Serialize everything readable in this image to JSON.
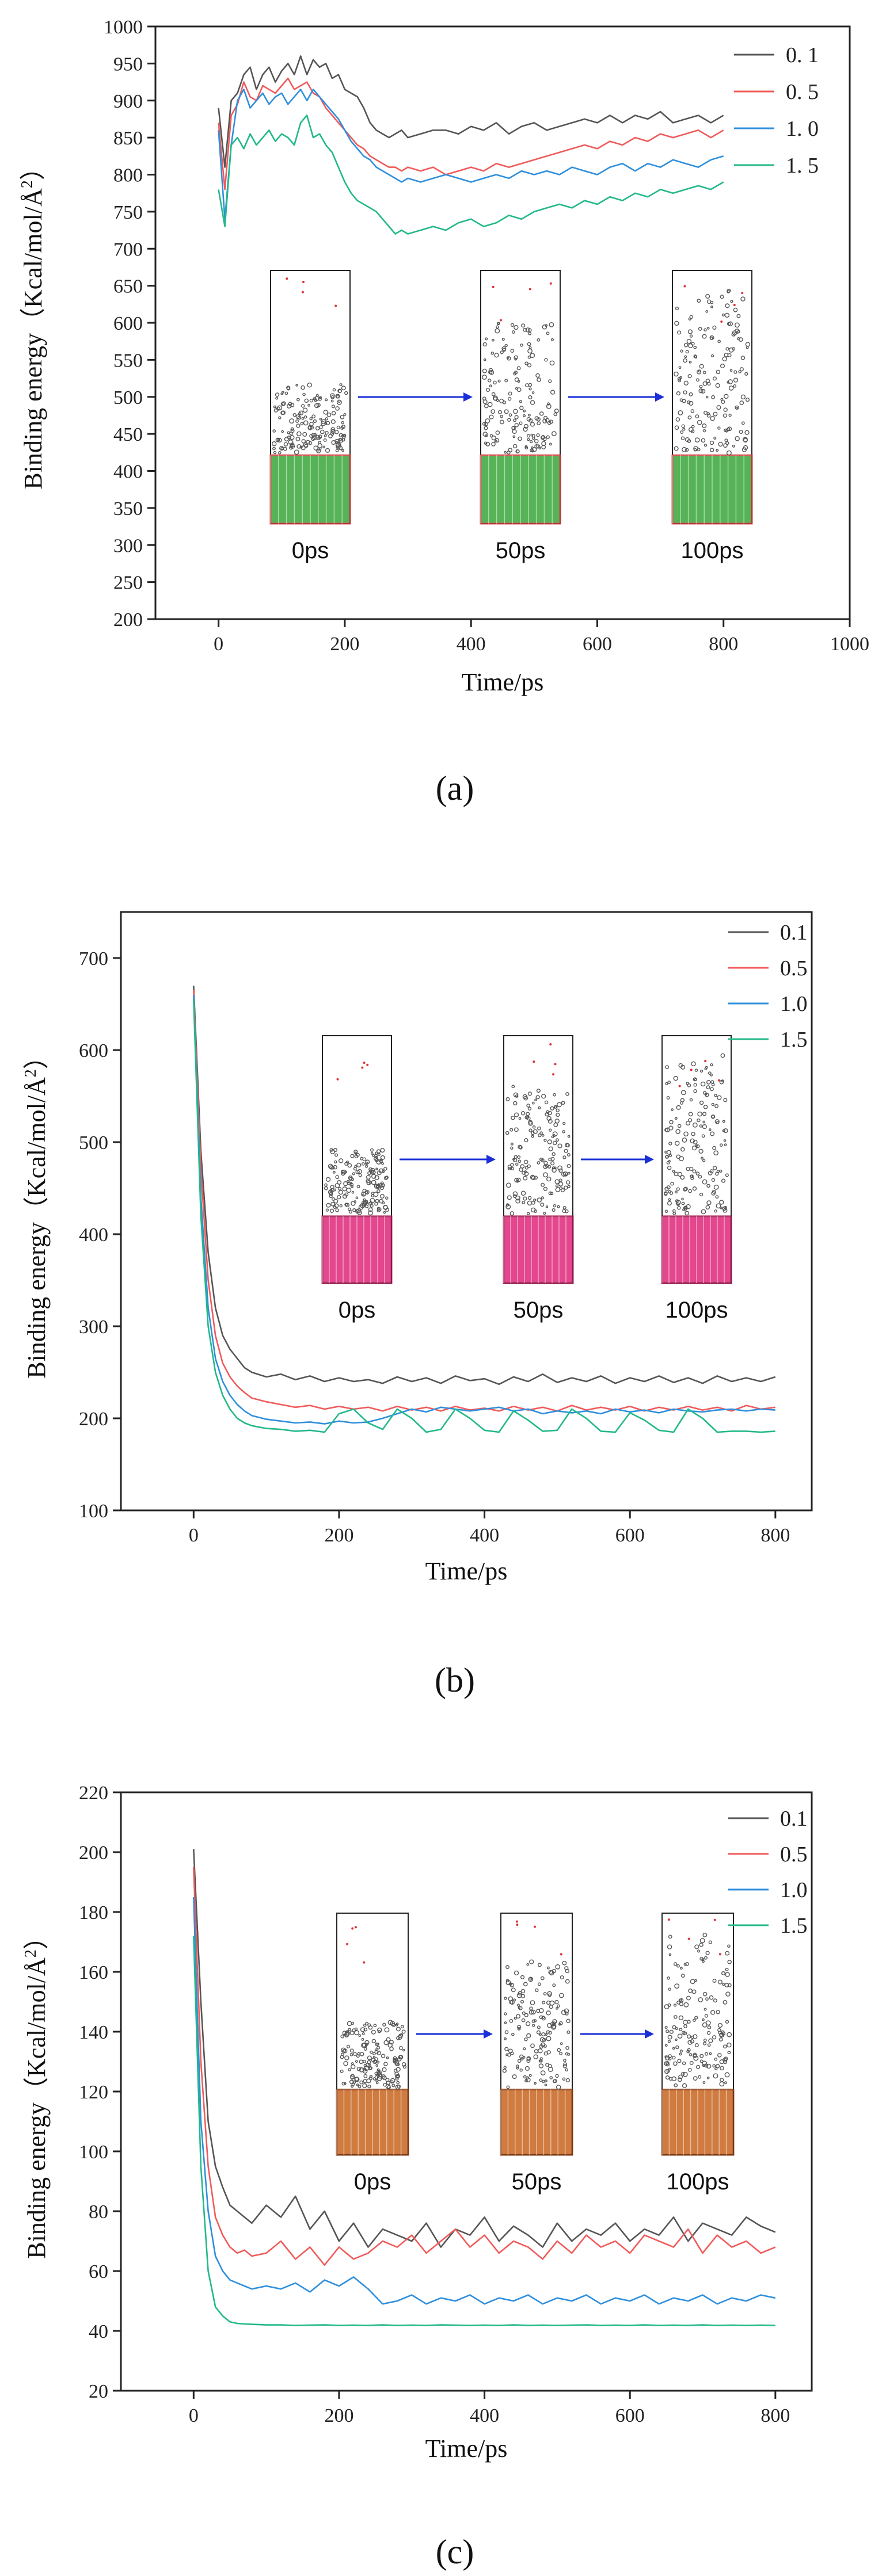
{
  "colors": {
    "series": [
      "#555555",
      "#f05a5a",
      "#2f8fdc",
      "#22b88a"
    ],
    "arrow": "#1a2fd8",
    "slab": [
      "#3aa63a",
      "#e0287a",
      "#c8641e"
    ],
    "slab_line": [
      "#d23a3a",
      "#a01850",
      "#8a3a10"
    ]
  },
  "chart_data": [
    {
      "type": "line",
      "caption": "(a)",
      "xlabel": "Time/ps",
      "ylabel_main": "Binding energy（Kcal/mol/Å",
      "ylabel_sup": "2",
      "ylabel_close": "）",
      "xlim": [
        -100,
        1000
      ],
      "ylim": [
        200,
        1000
      ],
      "xticks": [
        0,
        200,
        400,
        600,
        800,
        1000
      ],
      "yticks": [
        200,
        250,
        300,
        350,
        400,
        450,
        500,
        550,
        600,
        650,
        700,
        750,
        800,
        850,
        900,
        950,
        1000
      ],
      "x": [
        0,
        10,
        20,
        30,
        40,
        50,
        60,
        70,
        80,
        90,
        100,
        110,
        120,
        130,
        140,
        150,
        160,
        170,
        180,
        190,
        200,
        210,
        220,
        230,
        240,
        250,
        260,
        270,
        280,
        290,
        300,
        320,
        340,
        360,
        380,
        400,
        420,
        440,
        460,
        480,
        500,
        520,
        540,
        560,
        580,
        600,
        620,
        640,
        660,
        680,
        700,
        720,
        740,
        760,
        780,
        800
      ],
      "legend": [
        "0. 1",
        "0. 5",
        "1. 0",
        "1. 5"
      ],
      "series": [
        {
          "name": "0. 1",
          "values": [
            890,
            810,
            900,
            910,
            935,
            945,
            915,
            935,
            945,
            925,
            940,
            950,
            935,
            960,
            935,
            955,
            945,
            950,
            930,
            935,
            915,
            910,
            905,
            890,
            870,
            860,
            855,
            850,
            855,
            860,
            850,
            855,
            860,
            860,
            855,
            865,
            860,
            870,
            855,
            865,
            870,
            860,
            865,
            870,
            875,
            870,
            880,
            870,
            880,
            875,
            885,
            870,
            875,
            880,
            870,
            880
          ]
        },
        {
          "name": "0. 5",
          "values": [
            870,
            780,
            880,
            895,
            925,
            905,
            900,
            920,
            915,
            910,
            920,
            930,
            915,
            920,
            925,
            910,
            905,
            890,
            880,
            870,
            860,
            850,
            840,
            835,
            825,
            820,
            815,
            810,
            810,
            805,
            810,
            805,
            810,
            800,
            805,
            810,
            805,
            815,
            810,
            815,
            820,
            825,
            830,
            835,
            840,
            835,
            845,
            840,
            850,
            845,
            855,
            850,
            855,
            860,
            850,
            860
          ]
        },
        {
          "name": "1. 0",
          "values": [
            860,
            740,
            840,
            900,
            915,
            890,
            900,
            910,
            895,
            905,
            910,
            895,
            905,
            915,
            900,
            915,
            905,
            895,
            885,
            875,
            860,
            845,
            835,
            825,
            820,
            810,
            805,
            800,
            795,
            790,
            795,
            790,
            795,
            800,
            795,
            790,
            795,
            800,
            795,
            805,
            800,
            805,
            800,
            810,
            805,
            800,
            810,
            815,
            805,
            815,
            810,
            820,
            815,
            810,
            820,
            825
          ]
        },
        {
          "name": "1. 5",
          "values": [
            780,
            730,
            840,
            850,
            835,
            855,
            840,
            850,
            860,
            845,
            855,
            850,
            840,
            870,
            880,
            850,
            855,
            840,
            830,
            810,
            790,
            775,
            765,
            760,
            755,
            750,
            740,
            730,
            720,
            725,
            720,
            725,
            730,
            725,
            735,
            740,
            730,
            735,
            745,
            740,
            750,
            755,
            760,
            755,
            765,
            760,
            770,
            765,
            775,
            770,
            780,
            775,
            780,
            785,
            780,
            790
          ]
        }
      ],
      "snapshots": [
        "0ps",
        "50ps",
        "100ps"
      ]
    },
    {
      "type": "line",
      "caption": "(b)",
      "xlabel": "Time/ps",
      "ylabel_main": "Binding energy（Kcal/mol/Å",
      "ylabel_sup": "2",
      "ylabel_close": "）",
      "xlim": [
        -100,
        850
      ],
      "ylim": [
        100,
        750
      ],
      "xticks": [
        0,
        200,
        400,
        600,
        800
      ],
      "yticks": [
        100,
        200,
        300,
        400,
        500,
        600,
        700
      ],
      "x": [
        0,
        10,
        20,
        30,
        40,
        50,
        60,
        70,
        80,
        100,
        120,
        140,
        160,
        180,
        200,
        220,
        240,
        260,
        280,
        300,
        320,
        340,
        360,
        380,
        400,
        420,
        440,
        460,
        480,
        500,
        520,
        540,
        560,
        580,
        600,
        620,
        640,
        660,
        680,
        700,
        720,
        740,
        760,
        780,
        800
      ],
      "legend": [
        "0.1",
        "0.5",
        "1.0",
        "1.5"
      ],
      "series": [
        {
          "name": "0.1",
          "values": [
            670,
            490,
            380,
            320,
            290,
            275,
            265,
            255,
            250,
            245,
            248,
            242,
            246,
            240,
            244,
            240,
            242,
            238,
            245,
            240,
            244,
            238,
            246,
            241,
            243,
            237,
            245,
            240,
            248,
            239,
            244,
            240,
            246,
            238,
            244,
            240,
            246,
            239,
            244,
            238,
            246,
            240,
            244,
            240,
            245
          ]
        },
        {
          "name": "0.5",
          "values": [
            665,
            470,
            350,
            290,
            260,
            245,
            235,
            228,
            222,
            218,
            215,
            212,
            214,
            210,
            213,
            210,
            212,
            208,
            213,
            209,
            212,
            208,
            213,
            209,
            211,
            208,
            213,
            209,
            212,
            208,
            214,
            209,
            212,
            209,
            213,
            208,
            212,
            209,
            213,
            209,
            212,
            208,
            214,
            210,
            212
          ]
        },
        {
          "name": "1.0",
          "values": [
            660,
            440,
            320,
            265,
            240,
            225,
            215,
            208,
            203,
            199,
            197,
            195,
            196,
            194,
            197,
            195,
            196,
            200,
            205,
            210,
            207,
            212,
            210,
            208,
            210,
            212,
            208,
            210,
            205,
            208,
            206,
            208,
            205,
            210,
            207,
            209,
            206,
            210,
            208,
            207,
            209,
            210,
            208,
            210,
            209
          ]
        },
        {
          "name": "1.5",
          "values": [
            655,
            420,
            300,
            250,
            225,
            210,
            200,
            195,
            192,
            189,
            188,
            186,
            187,
            185,
            205,
            210,
            195,
            188,
            210,
            200,
            185,
            188,
            210,
            200,
            187,
            185,
            208,
            198,
            186,
            187,
            210,
            200,
            186,
            185,
            206,
            198,
            187,
            185,
            210,
            200,
            185,
            186,
            186,
            185,
            186
          ]
        }
      ],
      "snapshots": [
        "0ps",
        "50ps",
        "100ps"
      ]
    },
    {
      "type": "line",
      "caption": "(c)",
      "xlabel": "Time/ps",
      "ylabel_main": "Binding energy（Kcal/mol/Å",
      "ylabel_sup": "2",
      "ylabel_close": "）",
      "xlim": [
        -100,
        850
      ],
      "ylim": [
        20,
        220
      ],
      "xticks": [
        0,
        200,
        400,
        600,
        800
      ],
      "yticks": [
        20,
        40,
        60,
        80,
        100,
        120,
        140,
        160,
        180,
        200,
        220
      ],
      "x": [
        0,
        10,
        20,
        30,
        40,
        50,
        60,
        70,
        80,
        100,
        120,
        140,
        160,
        180,
        200,
        220,
        240,
        260,
        280,
        300,
        320,
        340,
        360,
        380,
        400,
        420,
        440,
        460,
        480,
        500,
        520,
        540,
        560,
        580,
        600,
        620,
        640,
        660,
        680,
        700,
        720,
        740,
        760,
        780,
        800
      ],
      "legend": [
        "0.1",
        "0.5",
        "1.0",
        "1.5"
      ],
      "series": [
        {
          "name": "0.1",
          "values": [
            201,
            150,
            110,
            95,
            88,
            82,
            80,
            78,
            76,
            82,
            78,
            85,
            74,
            80,
            70,
            76,
            68,
            74,
            72,
            70,
            76,
            68,
            74,
            72,
            78,
            70,
            75,
            72,
            68,
            76,
            70,
            74,
            72,
            76,
            70,
            74,
            72,
            78,
            70,
            76,
            74,
            72,
            78,
            75,
            73
          ]
        },
        {
          "name": "0.5",
          "values": [
            195,
            130,
            95,
            78,
            72,
            68,
            66,
            67,
            65,
            66,
            70,
            64,
            68,
            62,
            68,
            64,
            66,
            70,
            68,
            72,
            66,
            70,
            74,
            68,
            72,
            66,
            70,
            68,
            64,
            70,
            66,
            72,
            68,
            70,
            66,
            72,
            70,
            68,
            74,
            66,
            72,
            68,
            70,
            66,
            68
          ]
        },
        {
          "name": "1.0",
          "values": [
            185,
            110,
            80,
            65,
            60,
            57,
            56,
            55,
            54,
            55,
            54,
            56,
            53,
            57,
            55,
            58,
            54,
            49,
            50,
            52,
            49,
            51,
            50,
            52,
            49,
            51,
            50,
            52,
            49,
            51,
            50,
            52,
            49,
            51,
            50,
            52,
            49,
            51,
            50,
            52,
            49,
            51,
            50,
            52,
            51
          ]
        },
        {
          "name": "1.5",
          "values": [
            172,
            95,
            60,
            48,
            45,
            43,
            42.5,
            42.3,
            42.2,
            42,
            42,
            41.8,
            41.9,
            42,
            41.8,
            41.9,
            41.8,
            42,
            41.8,
            41.9,
            41.8,
            42,
            41.9,
            41.8,
            41.9,
            41.8,
            42,
            41.8,
            41.9,
            41.8,
            41.9,
            42,
            41.8,
            41.9,
            41.8,
            42,
            41.8,
            41.9,
            41.8,
            42,
            41.8,
            41.9,
            41.8,
            41.9,
            41.8
          ]
        }
      ],
      "snapshots": [
        "0ps",
        "50ps",
        "100ps"
      ]
    }
  ]
}
